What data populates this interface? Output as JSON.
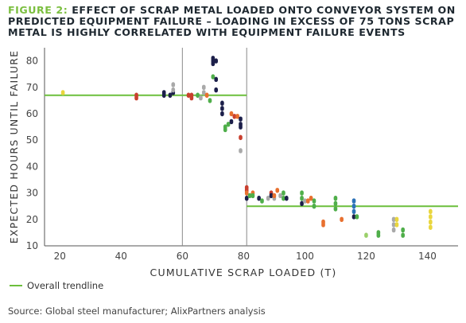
{
  "figure": {
    "label": "FIGURE 2:",
    "title": "EFFECT OF SCRAP METAL LOADED ONTO CONVEYOR SYSTEM ON PREDICTED EQUIPMENT FAILURE – LOADING IN EXCESS OF 75 TONS SCRAP METAL IS HIGHLY CORRELATED WITH EQUIPMENT FAILURE EVENTS"
  },
  "legend": {
    "label": "Overall trendline"
  },
  "source": "Source: Global steel manufacturer; AlixPartners analysis",
  "colors": {
    "trendline": "#6cbf3c",
    "navy": "#1c1f4a",
    "green": "#4fae4a",
    "orange": "#e8702f",
    "red": "#c9402f",
    "gray": "#a9a9a9",
    "yellow": "#e9d63e",
    "blue": "#2d73b8",
    "lightgreen": "#9bd06a"
  },
  "chart_data": {
    "type": "scatter",
    "xlabel": "CUMULATIVE SCRAP LOADED (T)",
    "ylabel": "EXPECTED HOURS UNTIL FAILURE",
    "xlim": [
      15,
      150
    ],
    "ylim": [
      10,
      85
    ],
    "xticks": [
      20,
      40,
      60,
      80,
      100,
      120,
      140
    ],
    "yticks": [
      10,
      20,
      30,
      40,
      50,
      60,
      70,
      80
    ],
    "vlines": [
      60,
      81
    ],
    "trendline": {
      "name": "Overall trendline",
      "segments": [
        {
          "x": [
            15,
            81
          ],
          "y": [
            67,
            67
          ]
        },
        {
          "x": [
            81,
            150
          ],
          "y": [
            25,
            25
          ]
        }
      ]
    },
    "points": [
      {
        "x": 21,
        "y": 68,
        "c": "yellow"
      },
      {
        "x": 45,
        "y": 66,
        "c": "red"
      },
      {
        "x": 45,
        "y": 67,
        "c": "red"
      },
      {
        "x": 54,
        "y": 67,
        "c": "navy"
      },
      {
        "x": 54,
        "y": 68,
        "c": "navy"
      },
      {
        "x": 56,
        "y": 67,
        "c": "navy"
      },
      {
        "x": 57,
        "y": 68,
        "c": "navy"
      },
      {
        "x": 57,
        "y": 69,
        "c": "gray"
      },
      {
        "x": 57,
        "y": 71,
        "c": "gray"
      },
      {
        "x": 62,
        "y": 67,
        "c": "red"
      },
      {
        "x": 63,
        "y": 66,
        "c": "red"
      },
      {
        "x": 63,
        "y": 67,
        "c": "red"
      },
      {
        "x": 65,
        "y": 67,
        "c": "green"
      },
      {
        "x": 66,
        "y": 66,
        "c": "gray"
      },
      {
        "x": 67,
        "y": 68,
        "c": "gray"
      },
      {
        "x": 67,
        "y": 70,
        "c": "gray"
      },
      {
        "x": 68,
        "y": 67,
        "c": "orange"
      },
      {
        "x": 69,
        "y": 65,
        "c": "green"
      },
      {
        "x": 70,
        "y": 80,
        "c": "navy"
      },
      {
        "x": 70,
        "y": 81,
        "c": "navy"
      },
      {
        "x": 70,
        "y": 79,
        "c": "navy"
      },
      {
        "x": 71,
        "y": 80,
        "c": "navy"
      },
      {
        "x": 70,
        "y": 74,
        "c": "green"
      },
      {
        "x": 71,
        "y": 73,
        "c": "navy"
      },
      {
        "x": 71,
        "y": 69,
        "c": "navy"
      },
      {
        "x": 73,
        "y": 64,
        "c": "navy"
      },
      {
        "x": 73,
        "y": 62,
        "c": "navy"
      },
      {
        "x": 73,
        "y": 60,
        "c": "navy"
      },
      {
        "x": 74,
        "y": 55,
        "c": "green"
      },
      {
        "x": 74,
        "y": 54,
        "c": "green"
      },
      {
        "x": 75,
        "y": 56,
        "c": "green"
      },
      {
        "x": 76,
        "y": 60,
        "c": "orange"
      },
      {
        "x": 77,
        "y": 59,
        "c": "red"
      },
      {
        "x": 76,
        "y": 57,
        "c": "navy"
      },
      {
        "x": 78,
        "y": 59,
        "c": "orange"
      },
      {
        "x": 79,
        "y": 58,
        "c": "navy"
      },
      {
        "x": 79,
        "y": 56,
        "c": "navy"
      },
      {
        "x": 79,
        "y": 55,
        "c": "navy"
      },
      {
        "x": 79,
        "y": 51,
        "c": "red"
      },
      {
        "x": 79,
        "y": 46,
        "c": "gray"
      },
      {
        "x": 81,
        "y": 32,
        "c": "red"
      },
      {
        "x": 81,
        "y": 31,
        "c": "red"
      },
      {
        "x": 81,
        "y": 30,
        "c": "orange"
      },
      {
        "x": 81,
        "y": 28,
        "c": "navy"
      },
      {
        "x": 82,
        "y": 29,
        "c": "green"
      },
      {
        "x": 83,
        "y": 30,
        "c": "orange"
      },
      {
        "x": 83,
        "y": 29,
        "c": "green"
      },
      {
        "x": 85,
        "y": 28,
        "c": "navy"
      },
      {
        "x": 86,
        "y": 27,
        "c": "green"
      },
      {
        "x": 88,
        "y": 28,
        "c": "gray"
      },
      {
        "x": 89,
        "y": 30,
        "c": "red"
      },
      {
        "x": 89,
        "y": 29,
        "c": "navy"
      },
      {
        "x": 90,
        "y": 28,
        "c": "gray"
      },
      {
        "x": 90,
        "y": 29,
        "c": "orange"
      },
      {
        "x": 91,
        "y": 31,
        "c": "orange"
      },
      {
        "x": 92,
        "y": 29,
        "c": "gray"
      },
      {
        "x": 93,
        "y": 30,
        "c": "green"
      },
      {
        "x": 93,
        "y": 28,
        "c": "green"
      },
      {
        "x": 94,
        "y": 28,
        "c": "navy"
      },
      {
        "x": 99,
        "y": 30,
        "c": "green"
      },
      {
        "x": 99,
        "y": 28,
        "c": "green"
      },
      {
        "x": 99,
        "y": 26,
        "c": "navy"
      },
      {
        "x": 100,
        "y": 27,
        "c": "gray"
      },
      {
        "x": 101,
        "y": 27,
        "c": "orange"
      },
      {
        "x": 102,
        "y": 28,
        "c": "orange"
      },
      {
        "x": 103,
        "y": 27,
        "c": "green"
      },
      {
        "x": 103,
        "y": 25,
        "c": "green"
      },
      {
        "x": 106,
        "y": 19,
        "c": "orange"
      },
      {
        "x": 106,
        "y": 18,
        "c": "orange"
      },
      {
        "x": 110,
        "y": 28,
        "c": "green"
      },
      {
        "x": 110,
        "y": 26,
        "c": "green"
      },
      {
        "x": 110,
        "y": 24,
        "c": "green"
      },
      {
        "x": 112,
        "y": 20,
        "c": "orange"
      },
      {
        "x": 116,
        "y": 27,
        "c": "blue"
      },
      {
        "x": 116,
        "y": 25,
        "c": "blue"
      },
      {
        "x": 116,
        "y": 23,
        "c": "blue"
      },
      {
        "x": 116,
        "y": 21,
        "c": "navy"
      },
      {
        "x": 117,
        "y": 21,
        "c": "green"
      },
      {
        "x": 120,
        "y": 14,
        "c": "lightgreen"
      },
      {
        "x": 124,
        "y": 15,
        "c": "green"
      },
      {
        "x": 124,
        "y": 14,
        "c": "green"
      },
      {
        "x": 129,
        "y": 20,
        "c": "gray"
      },
      {
        "x": 129,
        "y": 18,
        "c": "gray"
      },
      {
        "x": 129,
        "y": 16,
        "c": "gray"
      },
      {
        "x": 130,
        "y": 20,
        "c": "yellow"
      },
      {
        "x": 130,
        "y": 18,
        "c": "yellow"
      },
      {
        "x": 132,
        "y": 16,
        "c": "green"
      },
      {
        "x": 132,
        "y": 14,
        "c": "green"
      },
      {
        "x": 141,
        "y": 23,
        "c": "yellow"
      },
      {
        "x": 141,
        "y": 21,
        "c": "yellow"
      },
      {
        "x": 141,
        "y": 19,
        "c": "yellow"
      },
      {
        "x": 141,
        "y": 17,
        "c": "yellow"
      }
    ]
  }
}
